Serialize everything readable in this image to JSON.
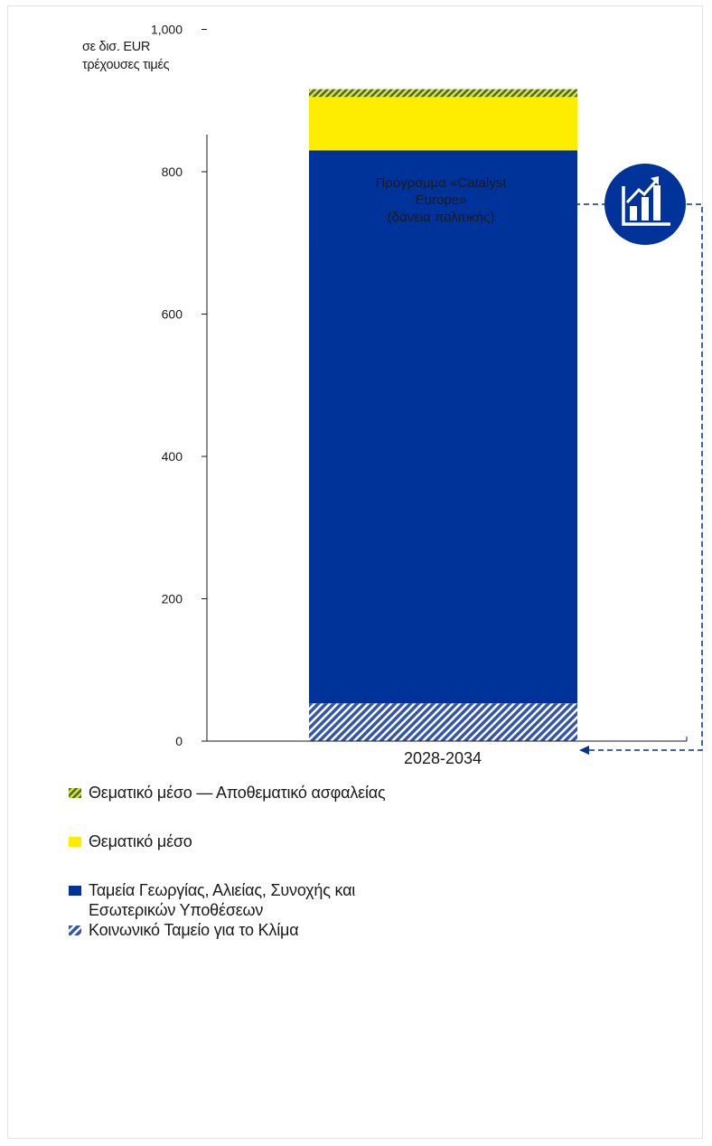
{
  "unit_label_line1": "σε δισ. EUR",
  "unit_label_line2": "τρέχουσες τιμές",
  "callout": {
    "line1": "Πρόγραμμα «Catalyst",
    "line2": "Europe»",
    "line3": "(δάνεια πολιτικής)",
    "icon": "chart-growth-icon",
    "icon_color": "#003399"
  },
  "chart_data": {
    "type": "bar",
    "stacked": true,
    "categories": [
      "2028-2034"
    ],
    "ylim": [
      0,
      1100
    ],
    "yticks": [
      0,
      200,
      400,
      600,
      800,
      1000
    ],
    "ytick_labels": [
      "0",
      "200",
      "400",
      "600",
      "800",
      "1,000"
    ],
    "series": [
      {
        "name": "Κοινωνικό Ταμείο για το Κλίμα",
        "values": [
          53
        ],
        "color": "#3355aa",
        "pattern": "hatch"
      },
      {
        "name": "Ταμεία Γεωργίας, Αλιείας, Συνοχής και Εσωτερικών Υποθέσεων",
        "values": [
          777
        ],
        "color": "#003399",
        "pattern": "solid"
      },
      {
        "name": "Θεματικό μέσο",
        "values": [
          75
        ],
        "color": "#ffed00",
        "pattern": "solid"
      },
      {
        "name": "Θεματικό μέσο — Αποθεματικό ασφαλείας",
        "values": [
          11
        ],
        "color": "#8a9a3a",
        "pattern": "hatch"
      }
    ],
    "legend": [
      {
        "name": "Θεματικό μέσο — Αποθεματικό ασφαλείας",
        "color": "#8a9a3a",
        "pattern": "hatch"
      },
      {
        "name": "Θεματικό μέσο",
        "color": "#ffed00",
        "pattern": "solid"
      },
      {
        "name_line1": "Ταμεία Γεωργίας, Αλιείας, Συνοχής και",
        "name_line2": "Εσωτερικών Υποθέσεων",
        "color": "#003399",
        "pattern": "solid"
      },
      {
        "name": "Κοινωνικό Ταμείο για το Κλίμα",
        "color": "#3355aa",
        "pattern": "hatch"
      }
    ],
    "legend_position": "bottom",
    "grid": false
  }
}
